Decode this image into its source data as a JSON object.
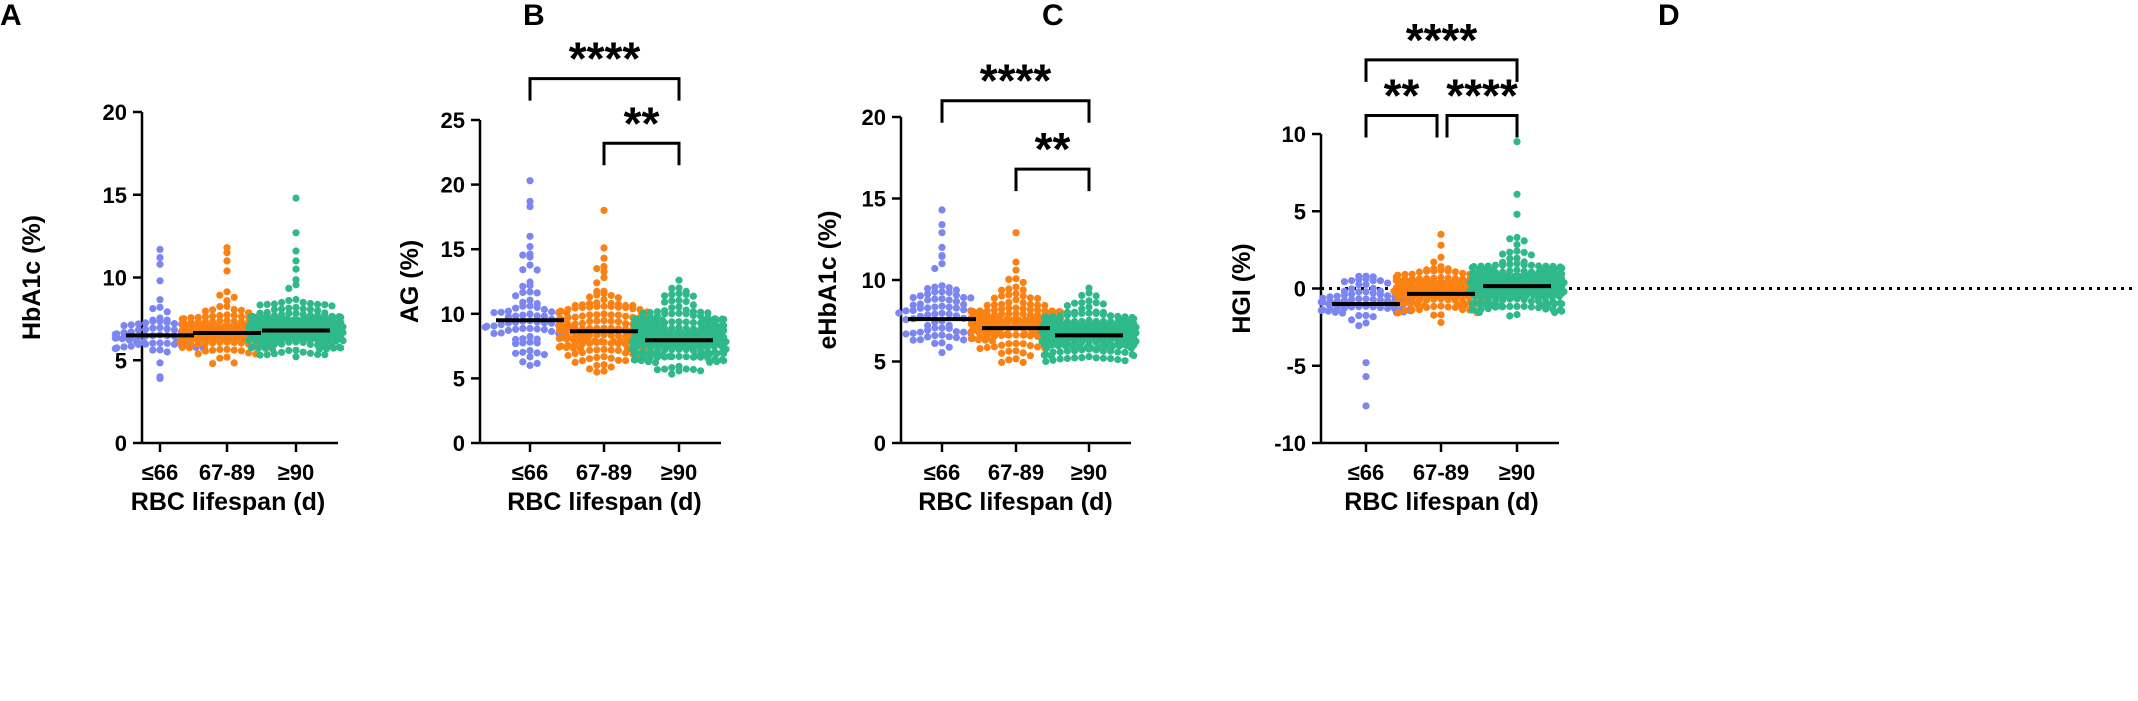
{
  "figure": {
    "colors": {
      "group1": "#7b86f0",
      "group2": "#fb8212",
      "group3": "#2fb98a",
      "axis": "#000000",
      "median": "#000000"
    },
    "panels": [
      {
        "letter": "A"
      },
      {
        "letter": "B"
      },
      {
        "letter": "C"
      },
      {
        "letter": "D"
      }
    ]
  },
  "chart_data": [
    {
      "type": "scatter",
      "subtype": "beeswarm-dot-plot",
      "panel": "A",
      "categories": [
        "≤66",
        "67-89",
        "≥90"
      ],
      "xlabel": "RBC lifespan (d)",
      "ylabel": "HbA1c (%)",
      "ylim": [
        0,
        20
      ],
      "yticks": [
        0,
        5,
        10,
        15,
        20
      ],
      "tick_labels": [
        "0",
        "5",
        "10",
        "15",
        "20"
      ],
      "medians": [
        6.5,
        6.65,
        6.8
      ],
      "series": [
        {
          "name": "≤66",
          "n": 80,
          "median": 6.5,
          "spread": 0.55,
          "min": 3.9,
          "max": 11.7,
          "outliers": [
            3.9,
            4.0,
            11.7,
            11.2,
            10.8,
            9.8
          ]
        },
        {
          "name": "67-89",
          "n": 170,
          "median": 6.65,
          "spread": 0.6,
          "min": 4.8,
          "max": 11.8,
          "outliers": [
            4.8,
            11.8,
            11.5,
            11.0,
            10.4
          ]
        },
        {
          "name": "≥90",
          "n": 240,
          "median": 6.8,
          "spread": 0.7,
          "min": 5.2,
          "max": 14.8,
          "outliers": [
            14.8,
            12.7,
            11.6,
            11.0,
            10.5
          ]
        }
      ],
      "significance": []
    },
    {
      "type": "scatter",
      "subtype": "beeswarm-dot-plot",
      "panel": "B",
      "categories": [
        "≤66",
        "67-89",
        "≥90"
      ],
      "xlabel": "RBC lifespan (d)",
      "ylabel": "AG (%)",
      "ylim": [
        0,
        25
      ],
      "yticks": [
        0,
        5,
        10,
        15,
        20,
        25
      ],
      "tick_labels": [
        "0",
        "5",
        "10",
        "15",
        "20",
        "25"
      ],
      "medians": [
        9.5,
        8.65,
        7.95
      ],
      "series": [
        {
          "name": "≤66",
          "n": 80,
          "median": 9.5,
          "spread": 1.7,
          "min": 5.8,
          "max": 20.3,
          "outliers": [
            20.3,
            18.7,
            18.3,
            16.0,
            15.2,
            14.4
          ]
        },
        {
          "name": "67-89",
          "n": 170,
          "median": 8.65,
          "spread": 1.4,
          "min": 5.1,
          "max": 18.0,
          "outliers": [
            18.0,
            15.1,
            14.3,
            13.5
          ]
        },
        {
          "name": "≥90",
          "n": 240,
          "median": 7.95,
          "spread": 1.2,
          "min": 5.3,
          "max": 12.6,
          "outliers": [
            12.6,
            12.0,
            11.5
          ]
        }
      ],
      "significance": [
        {
          "from": 0,
          "to": 2,
          "label": "****",
          "y": 28.2
        },
        {
          "from": 1,
          "to": 2,
          "label": "**",
          "y": 23.2
        }
      ]
    },
    {
      "type": "scatter",
      "subtype": "beeswarm-dot-plot",
      "panel": "C",
      "categories": [
        "≤66",
        "67-89",
        "≥90"
      ],
      "xlabel": "RBC lifespan (d)",
      "ylabel": "eHbA1c (%)",
      "ylim": [
        0,
        20
      ],
      "yticks": [
        0,
        5,
        10,
        15,
        20
      ],
      "tick_labels": [
        "0",
        "5",
        "10",
        "15",
        "20"
      ],
      "medians": [
        7.6,
        7.05,
        6.6
      ],
      "series": [
        {
          "name": "≤66",
          "n": 80,
          "median": 7.6,
          "spread": 1.05,
          "min": 5.2,
          "max": 14.3,
          "outliers": [
            14.3,
            13.4,
            12.9,
            11.5,
            11.0
          ]
        },
        {
          "name": "67-89",
          "n": 170,
          "median": 7.05,
          "spread": 0.9,
          "min": 4.9,
          "max": 12.9,
          "outliers": [
            12.9,
            11.1,
            10.6
          ]
        },
        {
          "name": "≥90",
          "n": 240,
          "median": 6.6,
          "spread": 0.75,
          "min": 5.0,
          "max": 9.5,
          "outliers": [
            9.5,
            9.2
          ]
        }
      ],
      "significance": [
        {
          "from": 0,
          "to": 2,
          "label": "****",
          "y": 21.0
        },
        {
          "from": 1,
          "to": 2,
          "label": "**",
          "y": 16.8
        }
      ]
    },
    {
      "type": "scatter",
      "subtype": "beeswarm-dot-plot",
      "panel": "D",
      "categories": [
        "≤66",
        "67-89",
        "≥90"
      ],
      "xlabel": "RBC lifespan (d)",
      "ylabel": "HGI (%)",
      "ylim": [
        -10,
        10
      ],
      "yticks": [
        -10,
        -5,
        0,
        5,
        10
      ],
      "tick_labels": [
        "-10",
        "-5",
        "0",
        "5",
        "10"
      ],
      "reference_line": {
        "y": 0,
        "style": "dotted"
      },
      "medians": [
        -1.0,
        -0.35,
        0.15
      ],
      "series": [
        {
          "name": "≤66",
          "n": 80,
          "median": -1.0,
          "spread": 0.8,
          "min": -7.6,
          "max": 0.8,
          "outliers": [
            -7.6,
            -5.7,
            -4.8
          ]
        },
        {
          "name": "67-89",
          "n": 170,
          "median": -0.35,
          "spread": 0.65,
          "min": -2.5,
          "max": 3.5,
          "outliers": [
            3.5,
            2.8
          ]
        },
        {
          "name": "≥90",
          "n": 240,
          "median": 0.15,
          "spread": 0.8,
          "min": -1.8,
          "max": 9.5,
          "outliers": [
            9.5,
            6.1,
            4.8,
            3.3
          ]
        }
      ],
      "significance": [
        {
          "from": 0,
          "to": 2,
          "label": "****",
          "y": 14.8
        },
        {
          "from": 0,
          "to": 1,
          "label": "**",
          "y": 11.2
        },
        {
          "from": 1,
          "to": 2,
          "label": "****",
          "y": 11.2
        }
      ]
    }
  ]
}
